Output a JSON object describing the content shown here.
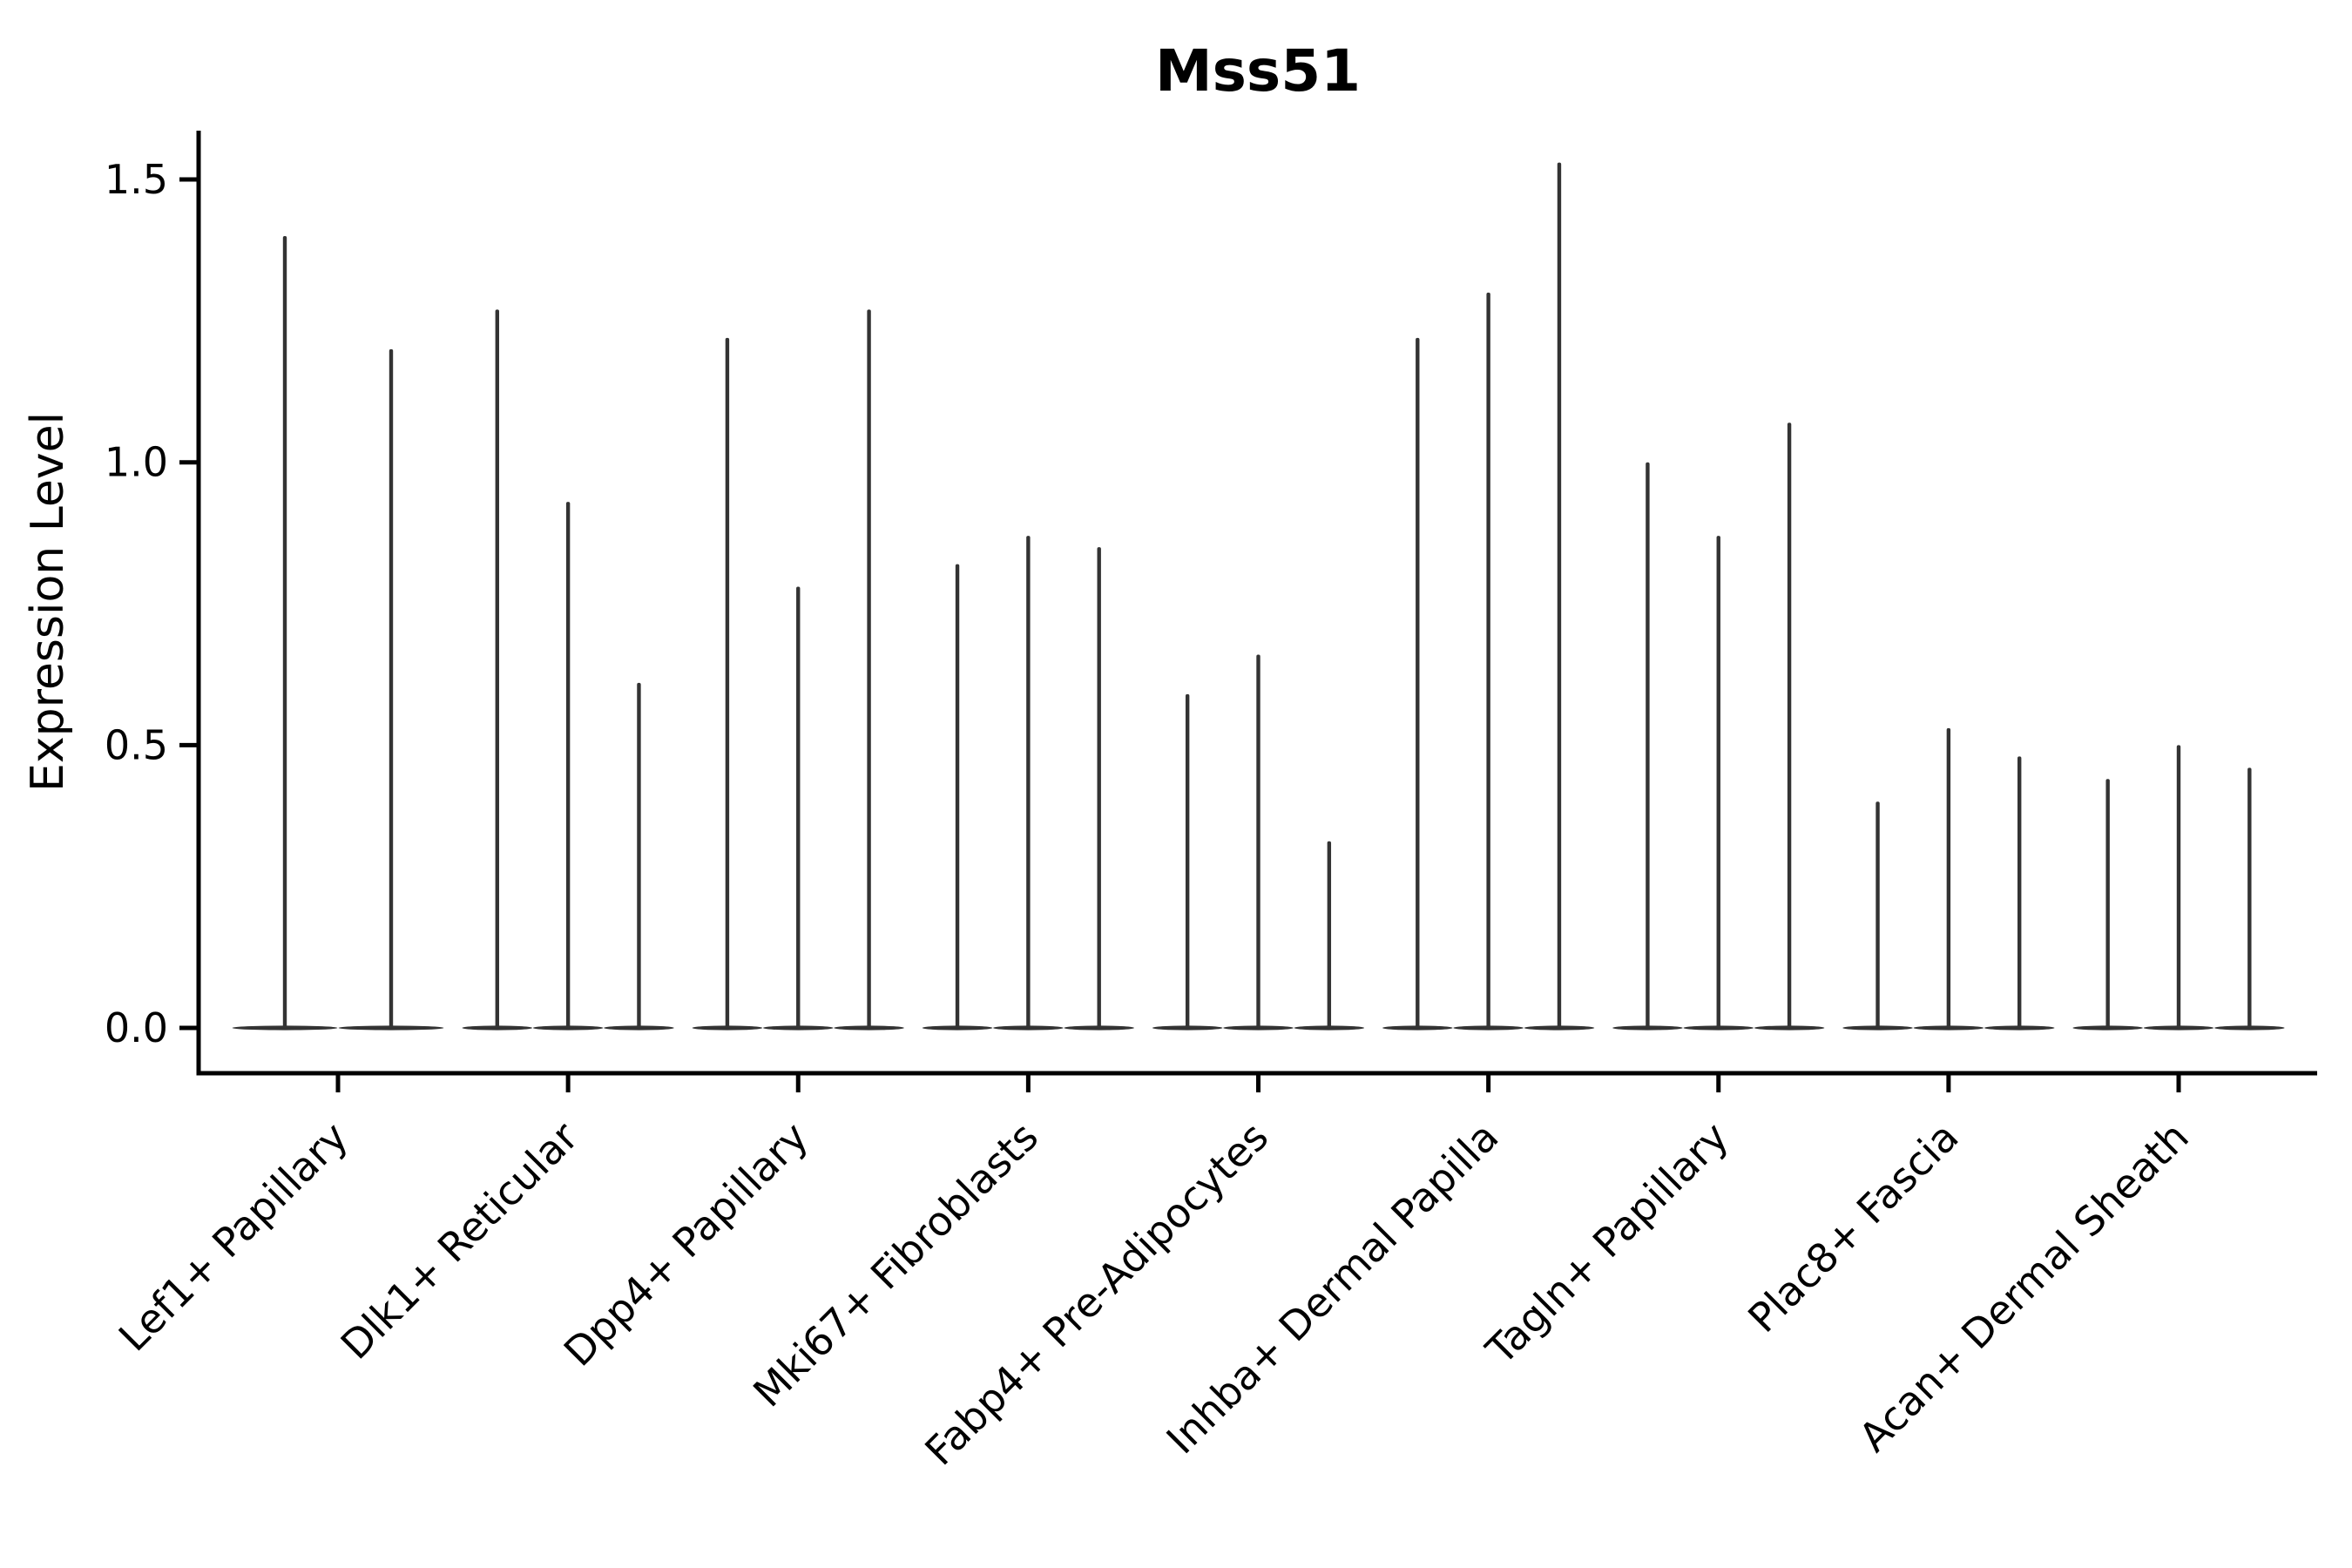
{
  "title": "Mss51",
  "y_axis": {
    "label": "Expression Level",
    "tick_labels": [
      "0.0",
      "0.5",
      "1.0",
      "1.5"
    ],
    "tick_values": [
      0.0,
      0.5,
      1.0,
      1.5
    ]
  },
  "colors": {
    "violin": "#333333",
    "axis": "#000000",
    "text": "#000000",
    "background": "#ffffff"
  },
  "chart_data": {
    "type": "violin",
    "title": "Mss51",
    "xlabel": "",
    "ylabel": "Expression Level",
    "ylim": [
      -0.08,
      1.57
    ],
    "yticks": [
      0.0,
      0.5,
      1.0,
      1.5
    ],
    "grid": false,
    "legend": "none",
    "description": "Needle-shaped violins: density concentrated at 0 (flat wide base) with a thin spike up to each violin's maximum expression value. Each category contains 2-3 violins.",
    "categories": [
      "Lef1+ Papillary",
      "Dlk1+ Reticular",
      "Dpp4+ Papillary",
      "Mki67+ Fibroblasts",
      "Fabp4+ Pre-Adipocytes",
      "Inhba+ Dermal Papilla",
      "Tagln+ Papillary",
      "Plac8+ Fascia",
      "Acan+ Dermal Sheath"
    ],
    "series": [
      {
        "category": "Lef1+ Papillary",
        "violin_max_values": [
          1.4,
          1.2
        ]
      },
      {
        "category": "Dlk1+ Reticular",
        "violin_max_values": [
          1.27,
          0.93,
          0.61
        ]
      },
      {
        "category": "Dpp4+ Papillary",
        "violin_max_values": [
          1.22,
          0.78,
          1.27
        ]
      },
      {
        "category": "Mki67+ Fibroblasts",
        "violin_max_values": [
          0.82,
          0.87,
          0.85
        ]
      },
      {
        "category": "Fabp4+ Pre-Adipocytes",
        "violin_max_values": [
          0.59,
          0.66,
          0.33
        ]
      },
      {
        "category": "Inhba+ Dermal Papilla",
        "violin_max_values": [
          1.22,
          1.3,
          1.53
        ]
      },
      {
        "category": "Tagln+ Papillary",
        "violin_max_values": [
          1.0,
          0.87,
          1.07
        ]
      },
      {
        "category": "Plac8+ Fascia",
        "violin_max_values": [
          0.4,
          0.53,
          0.48
        ]
      },
      {
        "category": "Acan+ Dermal Sheath",
        "violin_max_values": [
          0.44,
          0.5,
          0.46
        ]
      }
    ]
  }
}
